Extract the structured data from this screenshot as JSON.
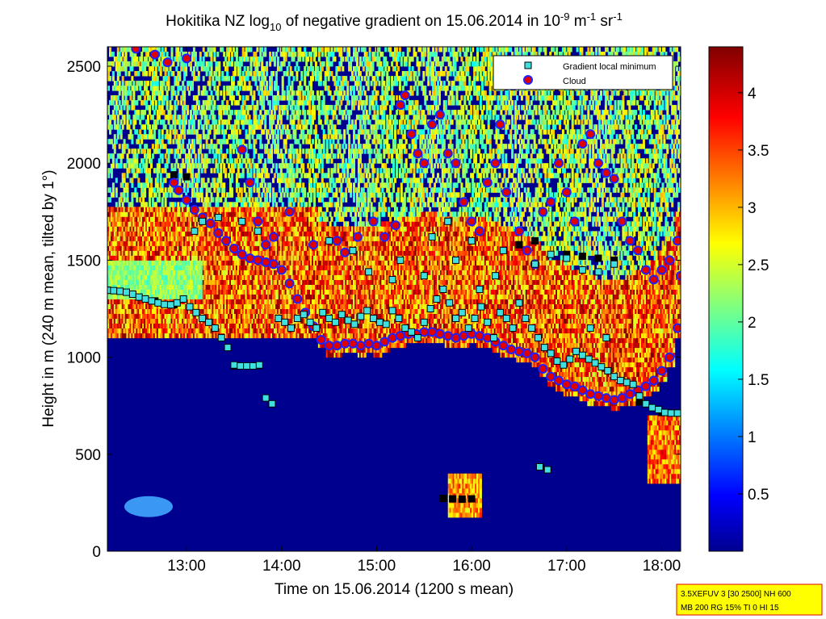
{
  "chart_data": {
    "type": "heatmap",
    "title": {
      "prefix": "Hokitika NZ log",
      "sub": "10",
      "middle": " of negative gradient on 15.06.2014 in 10",
      "exp1": "-9",
      "unit1": " m",
      "exp2": "-1",
      "unit2": " sr",
      "exp3": "-1"
    },
    "xlabel": "Time on 15.06.2014 (1200 s mean)",
    "ylabel": "Height in m (240 m mean, tilted by 1°)",
    "xlim": [
      "12:10",
      "18:12"
    ],
    "ylim": [
      0,
      2600
    ],
    "x_ticks": [
      "13:00",
      "14:00",
      "15:00",
      "16:00",
      "17:00",
      "18:00"
    ],
    "y_ticks": [
      "0",
      "500",
      "1000",
      "1500",
      "2000",
      "2500"
    ],
    "colorbar": {
      "colormap": "jet",
      "range": [
        0,
        4.4
      ],
      "ticks": [
        "0.5",
        "1",
        "1.5",
        "2",
        "2.5",
        "3",
        "3.5",
        "4"
      ]
    },
    "legend": {
      "position": "top-right",
      "entries": [
        {
          "label": "Gradient local minimum",
          "marker": "square",
          "fill": "#40e0e0",
          "edge": "#000000"
        },
        {
          "label": "Cloud",
          "marker": "circle",
          "fill": "#e00000",
          "edge": "#2020ff"
        }
      ]
    },
    "series": [
      {
        "name": "Gradient local minimum",
        "points": [
          [
            "12:10",
            1345
          ],
          [
            "12:14",
            1343
          ],
          [
            "12:18",
            1340
          ],
          [
            "12:22",
            1335
          ],
          [
            "12:26",
            1325
          ],
          [
            "12:30",
            1310
          ],
          [
            "12:34",
            1300
          ],
          [
            "12:38",
            1290
          ],
          [
            "12:42",
            1280
          ],
          [
            "12:46",
            1272
          ],
          [
            "12:50",
            1270
          ],
          [
            "12:54",
            1280
          ],
          [
            "12:58",
            1300
          ],
          [
            "13:02",
            1260
          ],
          [
            "13:06",
            1230
          ],
          [
            "13:10",
            1200
          ],
          [
            "13:14",
            1180
          ],
          [
            "13:18",
            1150
          ],
          [
            "13:22",
            1100
          ],
          [
            "13:26",
            1050
          ],
          [
            "13:30",
            960
          ],
          [
            "13:34",
            955
          ],
          [
            "13:38",
            955
          ],
          [
            "13:42",
            955
          ],
          [
            "13:46",
            960
          ],
          [
            "13:50",
            790
          ],
          [
            "13:54",
            760
          ],
          [
            "13:58",
            1200
          ],
          [
            "14:02",
            1180
          ],
          [
            "14:06",
            1150
          ],
          [
            "14:10",
            1200
          ],
          [
            "14:14",
            1220
          ],
          [
            "14:18",
            1180
          ],
          [
            "14:22",
            1150
          ],
          [
            "14:26",
            1230
          ],
          [
            "14:30",
            1200
          ],
          [
            "14:34",
            1180
          ],
          [
            "14:38",
            1220
          ],
          [
            "14:42",
            1190
          ],
          [
            "14:46",
            1170
          ],
          [
            "14:50",
            1210
          ],
          [
            "14:54",
            1240
          ],
          [
            "14:58",
            1200
          ],
          [
            "15:02",
            1180
          ],
          [
            "15:06",
            1170
          ],
          [
            "15:10",
            1240
          ],
          [
            "15:14",
            1200
          ],
          [
            "15:18",
            1150
          ],
          [
            "15:22",
            1130
          ],
          [
            "15:26",
            1100
          ],
          [
            "15:30",
            1180
          ],
          [
            "15:34",
            1250
          ],
          [
            "15:38",
            1300
          ],
          [
            "15:42",
            1350
          ],
          [
            "15:46",
            1280
          ],
          [
            "15:50",
            1200
          ],
          [
            "15:54",
            1230
          ],
          [
            "15:58",
            1150
          ],
          [
            "16:02",
            1200
          ],
          [
            "16:06",
            1260
          ],
          [
            "16:10",
            1180
          ],
          [
            "16:14",
            1100
          ],
          [
            "16:18",
            1230
          ],
          [
            "16:22",
            1200
          ],
          [
            "16:26",
            1150
          ],
          [
            "16:30",
            1280
          ],
          [
            "16:34",
            1200
          ],
          [
            "16:38",
            1150
          ],
          [
            "16:42",
            1100
          ],
          [
            "16:46",
            1050
          ],
          [
            "16:50",
            1020
          ],
          [
            "16:54",
            980
          ],
          [
            "16:58",
            960
          ],
          [
            "17:02",
            990
          ],
          [
            "17:06",
            1030
          ],
          [
            "17:10",
            1010
          ],
          [
            "17:14",
            990
          ],
          [
            "17:18",
            970
          ],
          [
            "17:22",
            950
          ],
          [
            "17:26",
            930
          ],
          [
            "17:30",
            900
          ],
          [
            "17:34",
            880
          ],
          [
            "17:38",
            870
          ],
          [
            "17:42",
            860
          ],
          [
            "17:46",
            800
          ],
          [
            "17:50",
            760
          ],
          [
            "17:54",
            740
          ],
          [
            "17:58",
            730
          ],
          [
            "18:02",
            715
          ],
          [
            "18:06",
            712
          ],
          [
            "18:10",
            712
          ],
          [
            "13:05",
            1650
          ],
          [
            "13:10",
            1700
          ],
          [
            "13:20",
            1720
          ],
          [
            "13:35",
            1700
          ],
          [
            "13:45",
            1650
          ],
          [
            "14:30",
            1600
          ],
          [
            "14:45",
            1550
          ],
          [
            "15:15",
            1500
          ],
          [
            "15:35",
            1620
          ],
          [
            "15:45",
            1700
          ],
          [
            "16:00",
            1600
          ],
          [
            "16:20",
            1550
          ],
          [
            "16:40",
            1480
          ],
          [
            "16:50",
            1530
          ],
          [
            "17:00",
            1510
          ],
          [
            "17:10",
            1450
          ],
          [
            "17:20",
            1440
          ],
          [
            "17:30",
            1480
          ],
          [
            "16:05",
            1350
          ],
          [
            "16:15",
            1420
          ],
          [
            "15:30",
            1420
          ],
          [
            "15:50",
            1500
          ],
          [
            "15:10",
            1400
          ],
          [
            "14:55",
            1440
          ],
          [
            "16:43",
            435
          ],
          [
            "16:48",
            420
          ],
          [
            "17:15",
            1150
          ],
          [
            "17:25",
            1100
          ]
        ]
      },
      {
        "name": "Cloud",
        "points": [
          [
            "12:28",
            2590
          ],
          [
            "12:40",
            2560
          ],
          [
            "12:48",
            2520
          ],
          [
            "13:00",
            2540
          ],
          [
            "12:52",
            1900
          ],
          [
            "12:55",
            1860
          ],
          [
            "13:00",
            1810
          ],
          [
            "13:05",
            1760
          ],
          [
            "13:10",
            1720
          ],
          [
            "13:15",
            1690
          ],
          [
            "13:20",
            1640
          ],
          [
            "13:25",
            1600
          ],
          [
            "13:30",
            1560
          ],
          [
            "13:35",
            1530
          ],
          [
            "13:40",
            1510
          ],
          [
            "13:45",
            1500
          ],
          [
            "13:50",
            1490
          ],
          [
            "13:55",
            1480
          ],
          [
            "14:00",
            1450
          ],
          [
            "14:05",
            1380
          ],
          [
            "14:10",
            1300
          ],
          [
            "14:15",
            1230
          ],
          [
            "14:20",
            1160
          ],
          [
            "14:25",
            1090
          ],
          [
            "14:30",
            1060
          ],
          [
            "14:35",
            1060
          ],
          [
            "14:40",
            1070
          ],
          [
            "14:45",
            1070
          ],
          [
            "14:50",
            1060
          ],
          [
            "14:55",
            1070
          ],
          [
            "15:00",
            1060
          ],
          [
            "15:05",
            1080
          ],
          [
            "15:10",
            1100
          ],
          [
            "15:15",
            1110
          ],
          [
            "15:20",
            1120
          ],
          [
            "15:25",
            1120
          ],
          [
            "15:30",
            1130
          ],
          [
            "15:35",
            1130
          ],
          [
            "15:40",
            1120
          ],
          [
            "15:45",
            1110
          ],
          [
            "15:50",
            1100
          ],
          [
            "15:55",
            1110
          ],
          [
            "16:00",
            1120
          ],
          [
            "16:05",
            1110
          ],
          [
            "16:10",
            1100
          ],
          [
            "16:15",
            1080
          ],
          [
            "16:20",
            1060
          ],
          [
            "16:25",
            1040
          ],
          [
            "16:30",
            1030
          ],
          [
            "16:35",
            1020
          ],
          [
            "16:40",
            1000
          ],
          [
            "16:45",
            940
          ],
          [
            "16:50",
            900
          ],
          [
            "16:55",
            880
          ],
          [
            "17:00",
            860
          ],
          [
            "17:05",
            850
          ],
          [
            "17:10",
            830
          ],
          [
            "17:15",
            810
          ],
          [
            "17:20",
            800
          ],
          [
            "17:25",
            790
          ],
          [
            "17:30",
            780
          ],
          [
            "17:35",
            790
          ],
          [
            "17:40",
            810
          ],
          [
            "17:45",
            830
          ],
          [
            "17:50",
            850
          ],
          [
            "17:55",
            880
          ],
          [
            "18:00",
            930
          ],
          [
            "18:05",
            1000
          ],
          [
            "18:10",
            1150
          ],
          [
            "13:35",
            2070
          ],
          [
            "13:40",
            1900
          ],
          [
            "13:45",
            1700
          ],
          [
            "13:50",
            1580
          ],
          [
            "13:55",
            1620
          ],
          [
            "14:05",
            1750
          ],
          [
            "14:20",
            1580
          ],
          [
            "14:35",
            1600
          ],
          [
            "14:40",
            1540
          ],
          [
            "14:48",
            1620
          ],
          [
            "14:58",
            1700
          ],
          [
            "15:05",
            1620
          ],
          [
            "15:12",
            1680
          ],
          [
            "15:15",
            2300
          ],
          [
            "15:18",
            2350
          ],
          [
            "15:22",
            2150
          ],
          [
            "15:26",
            2050
          ],
          [
            "15:30",
            2000
          ],
          [
            "15:35",
            2200
          ],
          [
            "15:40",
            2250
          ],
          [
            "15:45",
            2050
          ],
          [
            "15:50",
            2000
          ],
          [
            "15:55",
            1800
          ],
          [
            "16:00",
            1700
          ],
          [
            "16:05",
            1650
          ],
          [
            "16:10",
            1900
          ],
          [
            "16:15",
            2000
          ],
          [
            "16:18",
            2200
          ],
          [
            "16:22",
            1850
          ],
          [
            "16:30",
            1650
          ],
          [
            "16:35",
            1550
          ],
          [
            "16:40",
            1480
          ],
          [
            "16:45",
            1750
          ],
          [
            "16:50",
            1800
          ],
          [
            "16:55",
            2000
          ],
          [
            "17:00",
            1850
          ],
          [
            "17:05",
            1700
          ],
          [
            "17:10",
            2100
          ],
          [
            "17:15",
            2150
          ],
          [
            "17:20",
            2000
          ],
          [
            "17:25",
            1950
          ],
          [
            "17:30",
            1920
          ],
          [
            "17:35",
            1700
          ],
          [
            "17:40",
            1600
          ],
          [
            "17:45",
            1550
          ],
          [
            "17:50",
            1450
          ],
          [
            "17:55",
            1400
          ],
          [
            "18:00",
            1450
          ],
          [
            "18:05",
            1500
          ],
          [
            "18:10",
            1600
          ],
          [
            "18:12",
            1420
          ]
        ]
      }
    ],
    "black_marker_trace": [
      [
        "12:10",
        1345
      ],
      [
        "12:40",
        1290
      ],
      [
        "12:52",
        1270
      ],
      [
        "13:30",
        955
      ],
      [
        "13:46",
        958
      ],
      [
        "15:42",
        272
      ],
      [
        "15:48",
        270
      ],
      [
        "15:54",
        268
      ],
      [
        "16:00",
        270
      ],
      [
        "17:46",
        770
      ],
      [
        "18:00",
        715
      ],
      [
        "18:10",
        712
      ],
      [
        "12:52",
        1940
      ],
      [
        "13:00",
        1930
      ],
      [
        "17:00",
        1530
      ],
      [
        "17:10",
        1520
      ],
      [
        "17:20",
        1510
      ],
      [
        "17:30",
        1500
      ],
      [
        "16:30",
        1580
      ],
      [
        "16:40",
        1600
      ]
    ]
  },
  "stamp": {
    "line1": "3.5XEFUV 3 [30 2500] NH 600",
    "line2": "MB 200 RG 15% TI 0 HI 15"
  },
  "colors": {
    "background_field": "#00008f",
    "legend_cloud_edge": "#2020ff",
    "legend_cloud_fill": "#e00000",
    "legend_min_fill": "#40e0e0",
    "stamp_background": "#ffff00",
    "stamp_border": "#e00000"
  }
}
